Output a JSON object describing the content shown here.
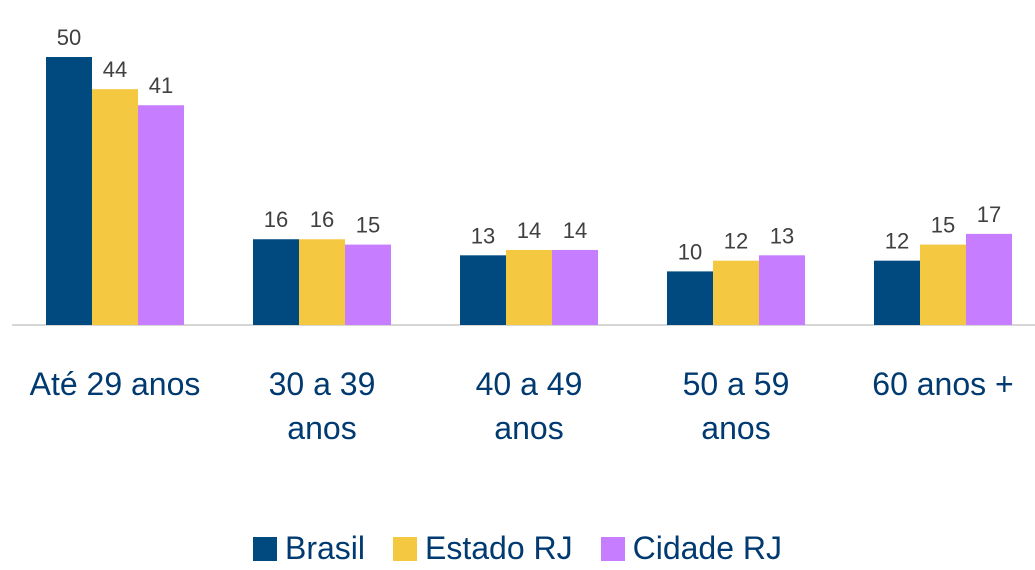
{
  "chart_data": {
    "type": "bar",
    "categories": [
      "Até 29 anos",
      "30 a 39 anos",
      "40 a 49 anos",
      "50 a 59 anos",
      "60 anos +"
    ],
    "series": [
      {
        "name": "Brasil",
        "color": "#004a7f",
        "values": [
          50,
          16,
          13,
          10,
          12
        ]
      },
      {
        "name": "Estado RJ",
        "color": "#f5c842",
        "values": [
          44,
          16,
          14,
          12,
          15
        ]
      },
      {
        "name": "Cidade RJ",
        "color": "#c77dff",
        "values": [
          41,
          15,
          14,
          13,
          17
        ]
      }
    ],
    "legend": "bottom"
  }
}
